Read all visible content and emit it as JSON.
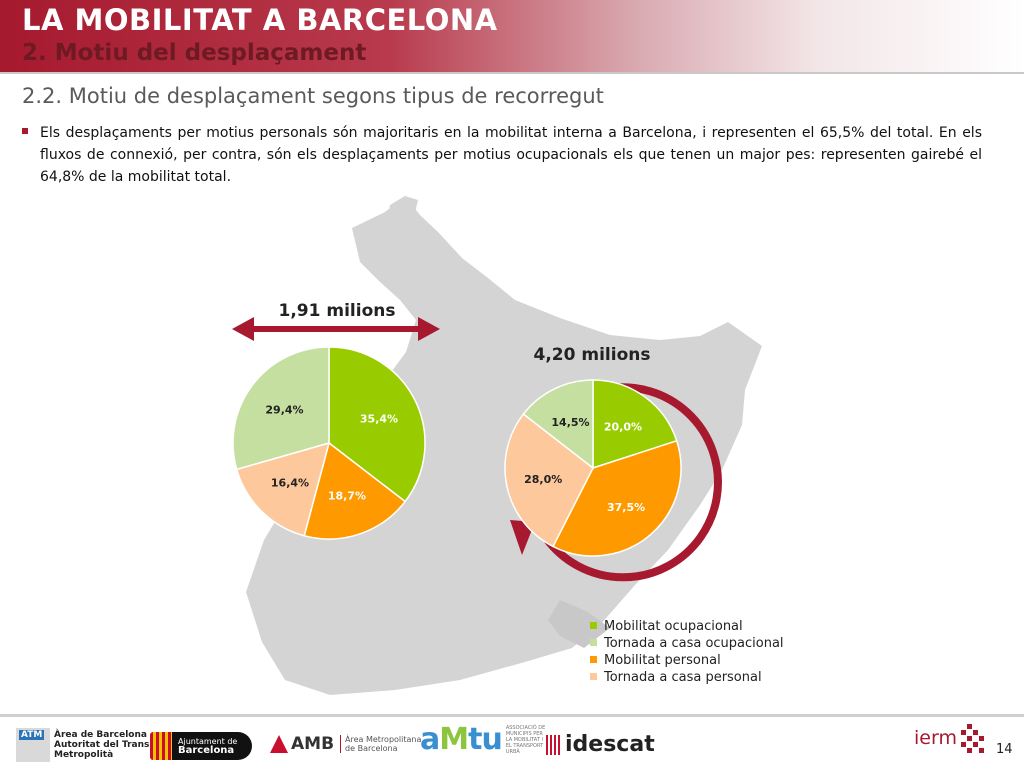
{
  "header": {
    "title": "LA MOBILITAT A BARCELONA",
    "subtitle": "2. Motiu del desplaçament"
  },
  "section": {
    "heading": "2.2. Motiu de desplaçament segons tipus de recorregut",
    "bullet": "Els desplaçaments per motius personals són majoritaris en la mobilitat interna a Barcelona, i representen el 65,5% del total. En els fluxos de connexió, per contra, són els desplaçaments per motius ocupacionals els que tenen un major pes: representen gairebé el 64,8% de la mobilitat total."
  },
  "colors": {
    "brand": "#a6192e",
    "ocupacional": "#99cc00",
    "tornada_ocupacional": "#c4dfa0",
    "personal": "#ff9900",
    "tornada_personal": "#fcc89c",
    "map": "#d4d4d4"
  },
  "chart_data": [
    {
      "type": "pie",
      "title": "1,91 milions",
      "categories": [
        "Mobilitat ocupacional",
        "Mobilitat personal",
        "Tornada a casa personal",
        "Tornada a casa ocupacional"
      ],
      "values": [
        35.4,
        18.7,
        16.4,
        29.4
      ],
      "labels": [
        "35,4%",
        "18,7%",
        "16,4%",
        "29,4%"
      ],
      "marker": "double-arrow"
    },
    {
      "type": "pie",
      "title": "4,20 milions",
      "categories": [
        "Mobilitat ocupacional",
        "Mobilitat personal",
        "Tornada a casa personal",
        "Tornada a casa ocupacional"
      ],
      "values": [
        20.0,
        37.5,
        28.0,
        14.5
      ],
      "labels": [
        "20,0%",
        "37,5%",
        "28,0%",
        "14,5%"
      ],
      "marker": "circular-arrow"
    }
  ],
  "legend": {
    "items": [
      {
        "label": "Mobilitat ocupacional",
        "color": "#99cc00"
      },
      {
        "label": "Tornada a casa ocupacional",
        "color": "#c4dfa0"
      },
      {
        "label": "Mobilitat personal",
        "color": "#ff9900"
      },
      {
        "label": "Tornada a casa personal",
        "color": "#fcc89c"
      }
    ]
  },
  "footer": {
    "atm": {
      "badge": "ATM",
      "lines": [
        "Àrea de Barcelona",
        "Autoritat del Transport",
        "Metropolità"
      ]
    },
    "ajuntament": {
      "line1": "Ajuntament de",
      "line2": "Barcelona"
    },
    "amb": {
      "name": "AMB",
      "sub1": "Àrea Metropolitana",
      "sub2": "de Barcelona"
    },
    "amtu": {
      "part1": "a",
      "part2": "M",
      "part3": "tu",
      "sub": "ASSOCIACIÓ DE MUNICIPIS PER LA MOBILITAT I EL TRANSPORT URBÀ"
    },
    "idescat": "idescat",
    "iermb": "ierm",
    "page_number": "14"
  }
}
